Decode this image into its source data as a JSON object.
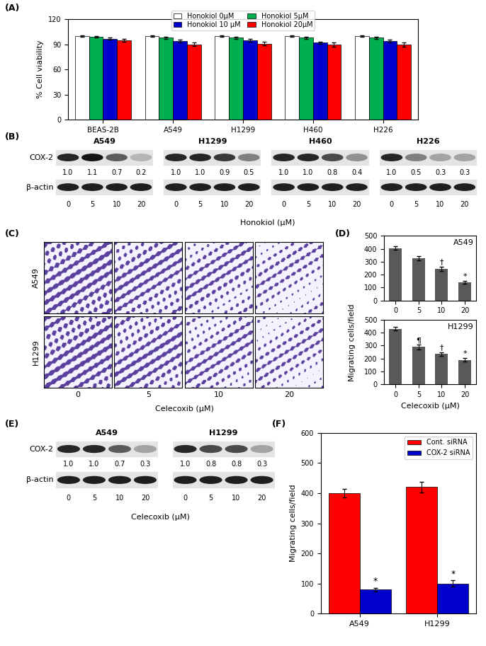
{
  "chart_data": [
    {
      "type": "bar",
      "panel_label": "(A)",
      "ylabel": "% Cell viability",
      "categories": [
        "BEAS-2B",
        "A549",
        "H1299",
        "H460",
        "H226"
      ],
      "series": [
        {
          "name": "Honokiol 0µM",
          "color": "#ffffff",
          "values": [
            100,
            100,
            100,
            100,
            100
          ],
          "errors": [
            0.5,
            0.5,
            0.5,
            0.5,
            0.5
          ]
        },
        {
          "name": "Honokiol 5µM",
          "color": "#00b050",
          "values": [
            99,
            98,
            98,
            98,
            98
          ],
          "errors": [
            1,
            1,
            1,
            1,
            1
          ]
        },
        {
          "name": "Honokiol 10 µM",
          "color": "#0000cc",
          "values": [
            97,
            94,
            95,
            92,
            94
          ],
          "errors": [
            1.5,
            1.5,
            1.5,
            1.5,
            1.5
          ]
        },
        {
          "name": "Honokiol 20µM",
          "color": "#ff0000",
          "values": [
            95,
            90,
            91,
            90,
            90
          ],
          "errors": [
            2,
            2,
            2,
            2.5,
            2.5
          ]
        }
      ],
      "ylim": [
        0,
        120
      ],
      "yticks": [
        0,
        30,
        60,
        90,
        120
      ],
      "legend": "upper center"
    },
    {
      "type": "bar",
      "panel_label": "(D)",
      "title": "A549",
      "categories": [
        "0",
        "5",
        "10",
        "20"
      ],
      "values": [
        405,
        325,
        245,
        140
      ],
      "errors": [
        12,
        15,
        18,
        10
      ],
      "annotations": [
        null,
        null,
        "†",
        "*"
      ],
      "color": "#595959",
      "ylim": [
        0,
        500
      ],
      "yticks": [
        0,
        100,
        200,
        300,
        400,
        500
      ],
      "ylabel": "Migrating cells/field"
    },
    {
      "type": "bar",
      "title": "H1299",
      "xlabel": "Celecoxib (µM)",
      "categories": [
        "0",
        "5",
        "10",
        "20"
      ],
      "values": [
        430,
        290,
        235,
        190
      ],
      "errors": [
        15,
        18,
        15,
        12
      ],
      "annotations": [
        null,
        "¶",
        "†",
        "*"
      ],
      "color": "#595959",
      "ylim": [
        0,
        500
      ],
      "yticks": [
        0,
        100,
        200,
        300,
        400,
        500
      ]
    },
    {
      "type": "bar",
      "panel_label": "(F)",
      "ylabel": "Migrating cells/field",
      "categories": [
        "A549",
        "H1299"
      ],
      "series": [
        {
          "name": "Cont. siRNA",
          "color": "#ff0000",
          "values": [
            400,
            420
          ],
          "errors": [
            15,
            18
          ]
        },
        {
          "name": "COX-2 siRNA",
          "color": "#0000cc",
          "values": [
            80,
            100
          ],
          "errors": [
            6,
            10
          ],
          "annotations": [
            "*",
            "*"
          ]
        }
      ],
      "ylim": [
        0,
        600
      ],
      "yticks": [
        0,
        100,
        200,
        300,
        400,
        500,
        600
      ],
      "legend": "upper right"
    }
  ],
  "blots": [
    {
      "panel_label": "(B)",
      "treatment": "Honokiol (µM)",
      "doses": [
        0,
        5,
        10,
        20
      ],
      "proteins": [
        "COX-2",
        "β-actin"
      ],
      "cell_lines": [
        {
          "name": "A549",
          "levels": [
            1.0,
            1.1,
            0.7,
            0.2
          ]
        },
        {
          "name": "H1299",
          "levels": [
            1.0,
            1.0,
            0.9,
            0.5
          ]
        },
        {
          "name": "H460",
          "levels": [
            1.0,
            1.0,
            0.8,
            0.4
          ]
        },
        {
          "name": "H226",
          "levels": [
            1.0,
            0.5,
            0.3,
            0.3
          ]
        }
      ]
    },
    {
      "panel_label": "(E)",
      "treatment": "Celecoxib (µM)",
      "doses": [
        0,
        5,
        10,
        20
      ],
      "proteins": [
        "COX-2",
        "β-actin"
      ],
      "cell_lines": [
        {
          "name": "A549",
          "levels": [
            1.0,
            1.0,
            0.7,
            0.3
          ]
        },
        {
          "name": "H1299",
          "levels": [
            1.0,
            0.8,
            0.8,
            0.3
          ]
        }
      ]
    }
  ],
  "micrographs": {
    "panel_label": "(C)",
    "rows": [
      "A549",
      "H1299"
    ],
    "doses": [
      0,
      5,
      10,
      20
    ],
    "xlabel": "Celecoxib (µM)"
  }
}
